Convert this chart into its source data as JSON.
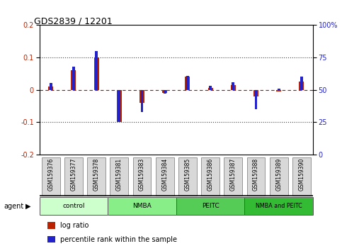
{
  "title": "GDS2839 / 12201",
  "samples": [
    "GSM159376",
    "GSM159377",
    "GSM159378",
    "GSM159381",
    "GSM159383",
    "GSM159384",
    "GSM159385",
    "GSM159386",
    "GSM159387",
    "GSM159388",
    "GSM159389",
    "GSM159390"
  ],
  "log_ratio": [
    0.01,
    0.06,
    0.1,
    -0.1,
    -0.04,
    -0.01,
    0.04,
    0.005,
    0.015,
    -0.02,
    -0.005,
    0.025
  ],
  "percentile_rank": [
    55,
    68,
    80,
    25,
    33,
    47,
    61,
    53,
    56,
    35,
    51,
    60
  ],
  "groups": [
    {
      "label": "control",
      "start": 0,
      "end": 3,
      "color": "#ccffcc"
    },
    {
      "label": "NMBA",
      "start": 3,
      "end": 6,
      "color": "#88ee88"
    },
    {
      "label": "PEITC",
      "start": 6,
      "end": 9,
      "color": "#55cc55"
    },
    {
      "label": "NMBA and PEITC",
      "start": 9,
      "end": 12,
      "color": "#33bb33"
    }
  ],
  "ylim_left": [
    -0.2,
    0.2
  ],
  "ylim_right": [
    0,
    100
  ],
  "yticks_left": [
    -0.2,
    -0.1,
    0.0,
    0.1,
    0.2
  ],
  "yticks_right": [
    0,
    25,
    50,
    75,
    100
  ],
  "log_ratio_color": "#bb2200",
  "percentile_color": "#2222cc",
  "zero_line_color": "#cc0000",
  "grid_color": "#444444",
  "bg_color": "#ffffff"
}
